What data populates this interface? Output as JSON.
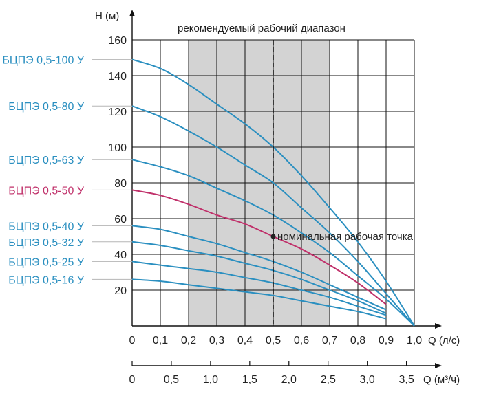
{
  "chart_data": {
    "type": "line",
    "y_axis": {
      "label": "H (м)",
      "range": [
        0,
        160
      ],
      "ticks": [
        "20",
        "40",
        "60",
        "80",
        "100",
        "120",
        "140",
        "160"
      ]
    },
    "x_axis": {
      "label": "Q (л/с)",
      "range": [
        0,
        1.0
      ],
      "ticks": [
        "0",
        "0,1",
        "0,2",
        "0,3",
        "0,4",
        "0,5",
        "0,6",
        "0,7",
        "0,8",
        "0,9",
        "1,0"
      ]
    },
    "x_axis_secondary": {
      "label": "Q (м³/ч)",
      "range": [
        0,
        3.6
      ],
      "ticks": [
        "0",
        "0,5",
        "1,0",
        "1,5",
        "2,0",
        "2,5",
        "3,0",
        "3,5"
      ]
    },
    "grid": true,
    "recommended_range": {
      "label": "рекомендуемый рабочий диапазон",
      "x": [
        0.2,
        0.7
      ],
      "color": "#d3d3d3"
    },
    "nominal_point": {
      "label": "номинальная рабочая точка",
      "x": 0.5,
      "y": 50
    },
    "series": [
      {
        "name": "БЦПЭ 0,5-100 У",
        "color": "#2a8fc0",
        "x": [
          0,
          0.1,
          0.2,
          0.3,
          0.4,
          0.5,
          0.6,
          0.7,
          0.8,
          0.9,
          1.0
        ],
        "values": [
          149,
          144,
          135,
          124,
          113,
          100,
          84,
          66,
          47,
          25,
          0
        ]
      },
      {
        "name": "БЦПЭ 0,5-80 У",
        "color": "#2a8fc0",
        "x": [
          0,
          0.1,
          0.2,
          0.3,
          0.4,
          0.5,
          0.6,
          0.7,
          0.8,
          0.9,
          1.0
        ],
        "values": [
          123,
          117,
          109,
          100,
          90,
          80,
          66,
          52,
          36,
          18,
          0
        ]
      },
      {
        "name": "БЦПЭ 0,5-63 У",
        "color": "#2a8fc0",
        "x": [
          0,
          0.1,
          0.2,
          0.3,
          0.4,
          0.5,
          0.6,
          0.7,
          0.8,
          0.9,
          1.0
        ],
        "values": [
          93,
          89,
          84,
          77,
          70,
          62,
          52,
          41,
          28,
          15,
          0
        ]
      },
      {
        "name": "БЦПЭ 0,5-50 У",
        "color": "#c0306a",
        "x": [
          0,
          0.1,
          0.2,
          0.3,
          0.4,
          0.5,
          0.6,
          0.7,
          0.8,
          0.9
        ],
        "values": [
          76,
          73,
          68,
          62,
          57,
          50,
          43,
          34,
          24,
          12
        ]
      },
      {
        "name": "БЦПЭ 0,5-40 У",
        "color": "#2a8fc0",
        "x": [
          0,
          0.1,
          0.2,
          0.3,
          0.4,
          0.5,
          0.6,
          0.7,
          0.8,
          0.9
        ],
        "values": [
          56,
          54,
          50,
          46,
          41,
          36,
          30,
          23,
          16,
          9
        ]
      },
      {
        "name": "БЦПЭ 0,5-32 У",
        "color": "#2a8fc0",
        "x": [
          0,
          0.1,
          0.2,
          0.3,
          0.4,
          0.5,
          0.6,
          0.7,
          0.8,
          0.9
        ],
        "values": [
          47,
          45,
          42,
          39,
          35,
          31,
          26,
          20,
          14,
          7
        ]
      },
      {
        "name": "БЦПЭ 0,5-25 У",
        "color": "#2a8fc0",
        "x": [
          0,
          0.1,
          0.2,
          0.3,
          0.4,
          0.5,
          0.6,
          0.7,
          0.8,
          0.9
        ],
        "values": [
          36,
          34,
          32,
          30,
          27,
          24,
          20,
          16,
          11,
          6
        ]
      },
      {
        "name": "БЦПЭ 0,5-16 У",
        "color": "#2a8fc0",
        "x": [
          0,
          0.1,
          0.2,
          0.3,
          0.4,
          0.5,
          0.6,
          0.7,
          0.8,
          0.9
        ],
        "values": [
          26,
          25,
          23,
          21,
          19,
          17,
          14,
          11,
          8,
          4
        ]
      }
    ]
  }
}
